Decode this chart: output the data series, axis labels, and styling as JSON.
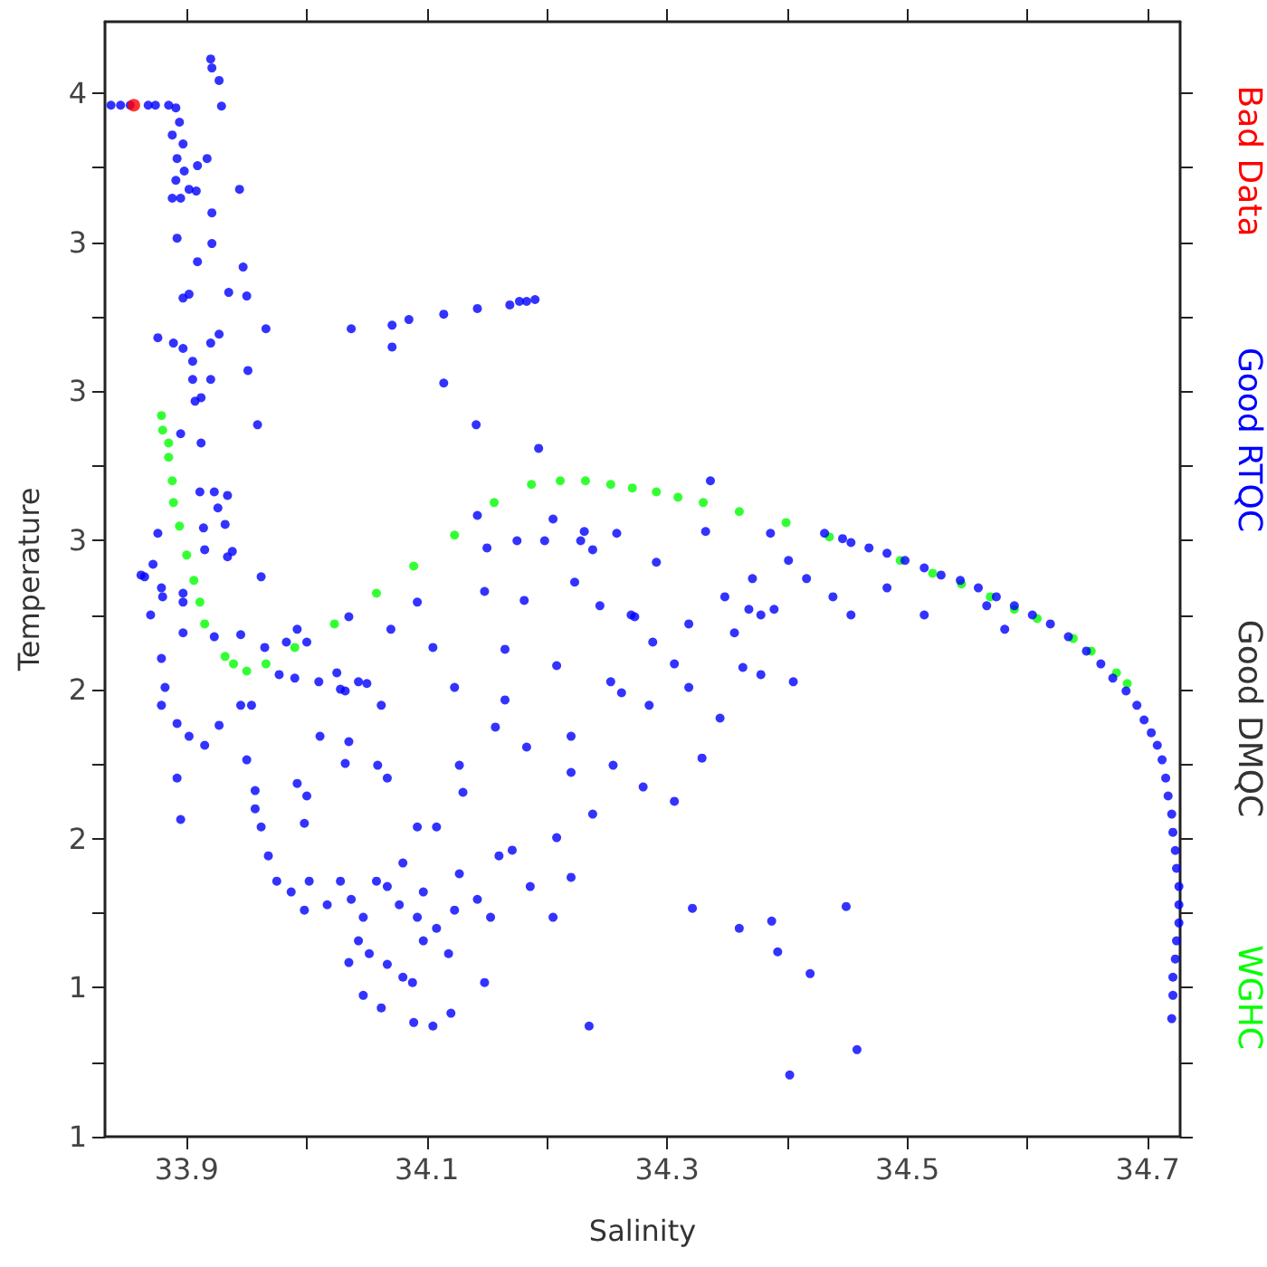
{
  "chart_data": {
    "type": "scatter",
    "annotations": [
      "Good DMQC"
    ],
    "xlabel": "Salinity",
    "ylabel": "Temperature",
    "marker": "circle",
    "grid": false,
    "legend": "right",
    "xlim": [
      33.832,
      34.727
    ],
    "ylim": [
      0.5,
      4.24
    ],
    "xticks": [
      33.9,
      {
        "value": 34.0,
        "label": null
      },
      34.1,
      {
        "value": 34.2,
        "label": null
      },
      34.3,
      {
        "value": 34.4,
        "label": null
      },
      34.5,
      {
        "value": 34.6,
        "label": null
      },
      34.7
    ],
    "yticks": [
      {
        "value": 0.5,
        "label": "1"
      },
      {
        "value": 0.75,
        "label": null
      },
      {
        "value": 1.0,
        "label": "1"
      },
      {
        "value": 1.25,
        "label": null
      },
      {
        "value": 1.5,
        "label": "2"
      },
      {
        "value": 1.75,
        "label": null
      },
      {
        "value": 2.0,
        "label": "2"
      },
      {
        "value": 2.25,
        "label": null
      },
      {
        "value": 2.5,
        "label": "3"
      },
      {
        "value": 2.75,
        "label": null
      },
      {
        "value": 3.0,
        "label": "3"
      },
      {
        "value": 3.25,
        "label": null
      },
      {
        "value": 3.5,
        "label": "3"
      },
      {
        "value": 3.75,
        "label": null
      },
      {
        "value": 4.0,
        "label": "4"
      }
    ],
    "series": [
      {
        "name": "Bad Data",
        "color": "#ff0000",
        "x": [
          33.856
        ],
        "values": [
          3.96
        ]
      },
      {
        "name": "Good RTQC",
        "color": "#0000ff",
        "x": [
          33.837,
          33.845,
          33.853,
          33.868,
          33.874,
          33.885,
          33.891,
          33.894,
          33.888,
          33.897,
          33.892,
          33.898,
          33.891,
          33.902,
          33.895,
          33.888,
          33.908,
          33.909,
          33.917,
          33.92,
          33.921,
          33.927,
          33.929,
          33.944,
          33.921,
          33.921,
          33.892,
          33.909,
          33.947,
          33.897,
          33.902,
          33.935,
          33.95,
          33.966,
          33.876,
          33.889,
          33.897,
          33.905,
          33.92,
          33.927,
          33.905,
          33.907,
          33.912,
          33.951,
          33.959,
          33.92,
          33.912,
          33.895,
          33.911,
          33.923,
          33.926,
          33.914,
          33.932,
          33.934,
          33.876,
          33.865,
          33.872,
          33.88,
          33.897,
          33.962,
          34.037,
          34.071,
          34.085,
          34.114,
          34.142,
          34.169,
          34.177,
          34.183,
          34.19,
          34.071,
          34.114,
          34.141,
          34.193,
          34.205,
          34.142,
          33.87,
          33.862,
          33.879,
          33.897,
          33.915,
          33.938,
          33.934,
          34.035,
          34.092,
          34.148,
          34.181,
          34.15,
          34.175,
          34.198,
          34.223,
          34.228,
          34.231,
          34.238,
          34.258,
          34.244,
          34.27,
          33.992,
          34.07,
          33.897,
          33.923,
          33.945,
          33.965,
          33.983,
          34.0,
          33.977,
          33.99,
          34.01,
          34.025,
          34.032,
          34.05,
          33.954,
          33.879,
          33.882,
          33.879,
          33.892,
          33.902,
          33.892,
          33.895,
          33.915,
          33.927,
          33.945,
          33.95,
          33.957,
          33.957,
          33.962,
          33.968,
          33.975,
          33.987,
          34.002,
          33.998,
          34.017,
          34.028,
          34.037,
          34.047,
          34.058,
          34.043,
          34.052,
          34.067,
          34.077,
          34.092,
          34.097,
          34.108,
          34.118,
          34.123,
          34.047,
          34.062,
          34.089,
          34.105,
          34.12,
          34.148,
          34.035,
          34.08,
          34.088,
          34.067,
          34.097,
          34.127,
          34.142,
          34.153,
          34.16,
          34.171,
          34.186,
          34.183,
          34.165,
          34.157,
          34.123,
          34.108,
          34.092,
          34.08,
          34.067,
          34.059,
          34.035,
          34.028,
          34.043,
          34.062,
          34.011,
          33.992,
          34.0,
          33.998,
          34.032,
          34.127,
          34.13,
          34.105,
          34.165,
          34.208,
          34.253,
          34.22,
          34.22,
          34.208,
          34.205,
          34.22,
          34.235,
          34.238,
          34.255,
          34.336,
          34.291,
          34.332,
          34.273,
          34.288,
          34.306,
          34.262,
          34.318,
          34.285,
          34.344,
          34.378,
          34.363,
          34.329,
          34.28,
          34.306,
          34.405,
          34.389,
          34.368,
          34.321,
          34.36,
          34.387,
          34.392,
          34.419,
          34.449,
          34.458,
          34.402,
          34.431,
          34.453,
          34.468,
          34.498,
          34.528,
          34.559,
          34.589,
          34.619,
          34.649,
          34.671,
          34.691,
          34.703,
          34.712,
          34.717,
          34.721,
          34.724,
          34.726,
          34.724,
          34.721,
          34.72,
          34.401,
          34.416,
          34.438,
          34.453,
          34.483,
          34.514,
          34.566,
          34.581,
          34.634,
          34.378,
          34.371,
          34.348,
          34.356,
          34.318,
          34.386,
          34.446,
          34.483,
          34.514,
          34.544,
          34.574,
          34.604,
          34.661,
          34.682,
          34.697,
          34.708,
          34.715,
          34.72,
          34.723,
          34.726,
          34.726,
          34.723,
          34.721
        ],
        "values": [
          3.96,
          3.96,
          3.96,
          3.96,
          3.96,
          3.96,
          3.951,
          3.903,
          3.86,
          3.83,
          3.781,
          3.739,
          3.708,
          3.678,
          3.648,
          3.648,
          3.672,
          3.757,
          3.781,
          4.115,
          4.085,
          4.043,
          3.957,
          3.678,
          3.599,
          3.496,
          3.514,
          3.435,
          3.417,
          3.313,
          3.326,
          3.332,
          3.32,
          3.21,
          3.18,
          3.162,
          3.144,
          3.101,
          3.162,
          3.192,
          3.04,
          2.967,
          2.979,
          3.07,
          2.888,
          3.04,
          2.827,
          2.858,
          2.663,
          2.663,
          2.609,
          2.542,
          2.554,
          2.445,
          2.524,
          2.378,
          2.42,
          2.311,
          2.323,
          2.378,
          3.21,
          3.222,
          3.241,
          3.259,
          3.278,
          3.29,
          3.302,
          3.302,
          3.308,
          3.149,
          3.028,
          2.888,
          2.809,
          2.572,
          2.584,
          2.25,
          2.384,
          2.341,
          2.293,
          2.469,
          2.463,
          2.651,
          2.244,
          2.293,
          2.329,
          2.299,
          2.475,
          2.499,
          2.499,
          2.36,
          2.499,
          2.53,
          2.469,
          2.524,
          2.281,
          2.25,
          2.202,
          2.202,
          2.19,
          2.177,
          2.184,
          2.141,
          2.159,
          2.159,
          2.05,
          2.038,
          2.026,
          2.056,
          1.995,
          2.02,
          1.947,
          2.104,
          2.007,
          1.947,
          1.886,
          1.843,
          1.703,
          1.564,
          1.813,
          1.88,
          1.947,
          1.764,
          1.661,
          1.6,
          1.539,
          1.442,
          1.357,
          1.321,
          1.357,
          1.26,
          1.278,
          1.357,
          1.296,
          1.236,
          1.357,
          1.157,
          1.114,
          1.339,
          1.278,
          1.236,
          1.321,
          1.199,
          1.114,
          1.26,
          0.974,
          0.932,
          0.883,
          0.871,
          0.914,
          1.017,
          1.084,
          1.035,
          1.017,
          1.078,
          1.157,
          1.382,
          1.296,
          1.236,
          1.442,
          1.461,
          1.339,
          1.807,
          1.965,
          1.874,
          2.007,
          1.539,
          1.539,
          1.418,
          1.703,
          1.746,
          1.825,
          2.001,
          2.026,
          1.947,
          1.843,
          1.685,
          1.643,
          1.551,
          1.752,
          1.746,
          1.655,
          2.141,
          2.135,
          2.08,
          2.026,
          1.843,
          1.722,
          1.503,
          1.236,
          1.37,
          0.871,
          1.582,
          1.746,
          2.7,
          2.427,
          2.53,
          2.244,
          2.159,
          2.086,
          1.989,
          2.007,
          1.947,
          1.904,
          2.05,
          2.074,
          1.77,
          1.673,
          1.625,
          2.026,
          2.269,
          2.269,
          1.266,
          1.199,
          1.223,
          1.12,
          1.047,
          1.272,
          0.792,
          0.707,
          2.524,
          2.493,
          2.475,
          2.433,
          2.384,
          2.341,
          2.281,
          2.22,
          2.129,
          2.038,
          1.947,
          1.855,
          1.764,
          1.643,
          1.521,
          1.4,
          1.278,
          1.157,
          1.035,
          0.896,
          2.433,
          2.372,
          2.311,
          2.25,
          2.341,
          2.25,
          2.281,
          2.202,
          2.177,
          2.25,
          2.372,
          2.311,
          2.19,
          2.22,
          2.524,
          2.506,
          2.457,
          2.408,
          2.366,
          2.311,
          2.25,
          2.086,
          1.995,
          1.898,
          1.813,
          1.703,
          1.582,
          1.46,
          1.339,
          1.217,
          1.096,
          0.974
        ]
      },
      {
        "name": "WGHC",
        "color": "#00ff00",
        "x": [
          33.879,
          33.88,
          33.885,
          33.885,
          33.888,
          33.889,
          33.894,
          33.9,
          33.906,
          33.911,
          33.915,
          33.932,
          33.939,
          33.95,
          33.966,
          33.99,
          34.023,
          34.058,
          34.089,
          34.123,
          34.156,
          34.187,
          34.211,
          34.232,
          34.253,
          34.271,
          34.291,
          34.309,
          34.33,
          34.36,
          34.399,
          34.435,
          34.494,
          34.521,
          34.545,
          34.569,
          34.589,
          34.608,
          34.638,
          34.653,
          34.674,
          34.683
        ],
        "values": [
          2.919,
          2.87,
          2.827,
          2.779,
          2.7,
          2.627,
          2.548,
          2.451,
          2.366,
          2.293,
          2.22,
          2.111,
          2.086,
          2.062,
          2.086,
          2.141,
          2.22,
          2.323,
          2.414,
          2.518,
          2.627,
          2.688,
          2.7,
          2.7,
          2.688,
          2.676,
          2.663,
          2.645,
          2.627,
          2.597,
          2.56,
          2.512,
          2.433,
          2.39,
          2.354,
          2.311,
          2.269,
          2.238,
          2.171,
          2.129,
          2.056,
          2.02
        ]
      }
    ]
  }
}
